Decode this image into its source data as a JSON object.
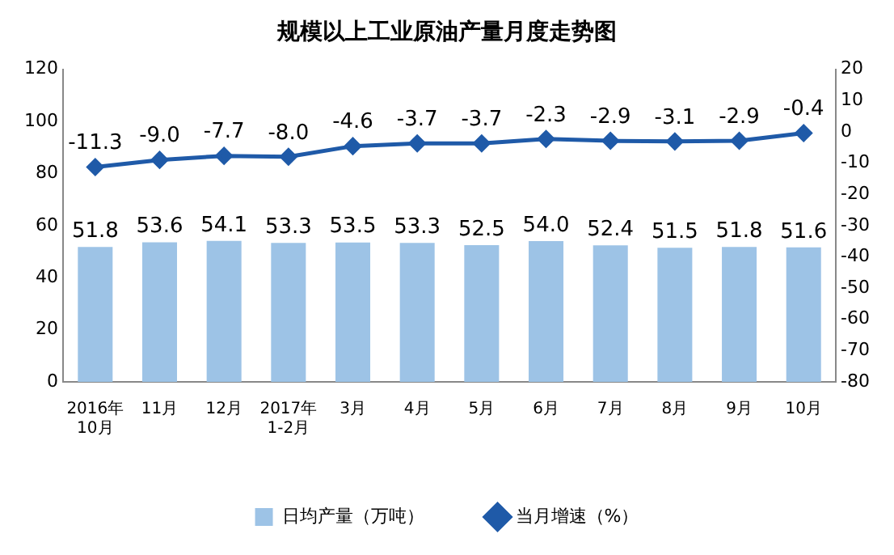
{
  "chart_data": {
    "type": "bar",
    "title": "规模以上工业原油产量月度走势图",
    "categories": [
      "2016年\n10月",
      "11月",
      "12月",
      "2017年\n1-2月",
      "3月",
      "4月",
      "5月",
      "6月",
      "7月",
      "8月",
      "9月",
      "10月"
    ],
    "series": [
      {
        "name": "日均产量（万吨）",
        "color": "#9dc3e6",
        "values": [
          51.8,
          53.6,
          54.1,
          53.3,
          53.5,
          53.3,
          52.5,
          54.0,
          52.4,
          51.5,
          51.8,
          51.6
        ],
        "value_labels": [
          "51.8",
          "53.6",
          "54.1",
          "53.3",
          "53.5",
          "53.3",
          "52.5",
          "54.0",
          "52.4",
          "51.5",
          "51.8",
          "51.6"
        ]
      },
      {
        "name": "当月增速（%）",
        "type": "line",
        "axis": "y2",
        "color": "#1f5aa8",
        "marker": "diamond",
        "values": [
          -11.3,
          -9.0,
          -7.7,
          -8.0,
          -4.6,
          -3.7,
          -3.7,
          -2.3,
          -2.9,
          -3.1,
          -2.9,
          -0.4
        ],
        "value_labels": [
          "-11.3",
          "-9.0",
          "-7.7",
          "-8.0",
          "-4.6",
          "-3.7",
          "-3.7",
          "-2.3",
          "-2.9",
          "-3.1",
          "-2.9",
          "-0.4"
        ]
      }
    ],
    "ylim": [
      0,
      120
    ],
    "yticks": [
      0,
      20,
      40,
      60,
      80,
      100,
      120
    ],
    "y2lim": [
      -80,
      20
    ],
    "y2ticks": [
      -80,
      -70,
      -60,
      -50,
      -40,
      -30,
      -20,
      -10,
      0,
      10,
      20
    ],
    "legend": "bottom"
  }
}
